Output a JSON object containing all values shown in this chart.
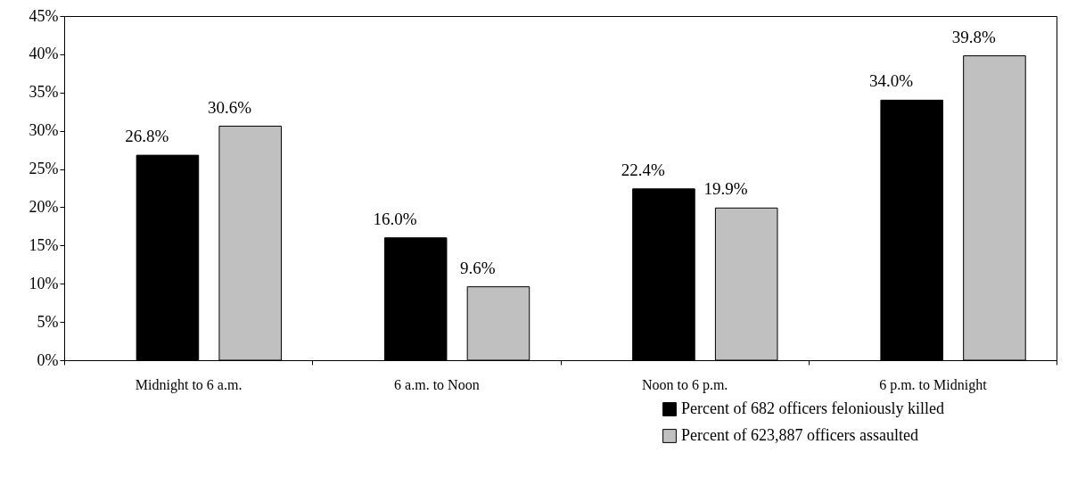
{
  "chart_data": {
    "type": "bar",
    "categories": [
      "Midnight to 6 a.m.",
      "6 a.m. to Noon",
      "Noon to 6 p.m.",
      "6 p.m. to Midnight"
    ],
    "series": [
      {
        "name": "Percent of 682 officers feloniously killed",
        "color": "#000000",
        "values": [
          26.8,
          16.0,
          22.4,
          34.0
        ],
        "value_labels": [
          "26.8%",
          "16.0%",
          "22.4%",
          "34.0%"
        ]
      },
      {
        "name": "Percent of 623,887 officers assaulted",
        "color": "#c0c0c0",
        "values": [
          30.6,
          9.6,
          19.9,
          39.8
        ],
        "value_labels": [
          "30.6%",
          "9.6%",
          "19.9%",
          "39.8%"
        ]
      }
    ],
    "ylim": [
      0,
      45
    ],
    "yticks": [
      {
        "value": 0,
        "label": "0%"
      },
      {
        "value": 5,
        "label": "5%"
      },
      {
        "value": 10,
        "label": "10%"
      },
      {
        "value": 15,
        "label": "15%"
      },
      {
        "value": 20,
        "label": "20%"
      },
      {
        "value": 25,
        "label": "25%"
      },
      {
        "value": 30,
        "label": "30%"
      },
      {
        "value": 35,
        "label": "35%"
      },
      {
        "value": 40,
        "label": "40%"
      },
      {
        "value": 45,
        "label": "45%"
      }
    ],
    "grid": false,
    "legend": "bottom right"
  }
}
